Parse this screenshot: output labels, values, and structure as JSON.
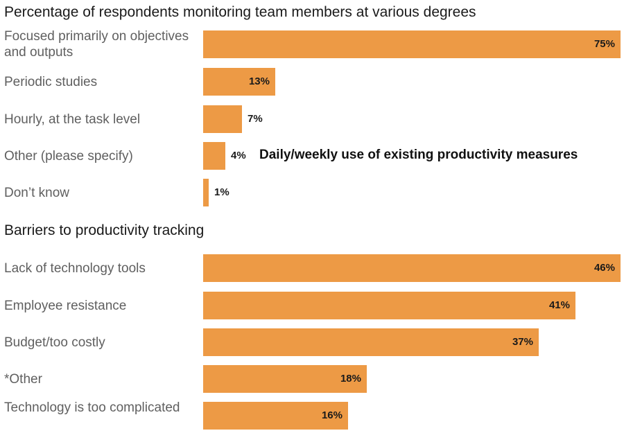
{
  "colors": {
    "bar": "#ED9A45",
    "label": "#5F5F5F",
    "value": "#1A1A1A"
  },
  "chart_data": [
    {
      "type": "bar",
      "orientation": "horizontal",
      "title": "Percentage of respondents monitoring team members at various degrees",
      "categories": [
        "Focused primarily on objectives and outputs",
        "Periodic studies",
        "Hourly, at the task level",
        "Other (please specify)",
        "Don’t know"
      ],
      "values": [
        75,
        13,
        7,
        4,
        1
      ],
      "value_labels": [
        "75%",
        "13%",
        "7%",
        "4%",
        "1%"
      ],
      "annotations": [
        {
          "category": "Other (please specify)",
          "text": "Daily/weekly use of existing productivity measures"
        }
      ],
      "xlim": [
        0,
        75
      ]
    },
    {
      "type": "bar",
      "orientation": "horizontal",
      "title": "Barriers to productivity tracking",
      "categories": [
        "Lack of technology tools",
        "Employee resistance",
        "Budget/too costly",
        "*Other",
        "Technology is too complicated"
      ],
      "values": [
        46,
        41,
        37,
        18,
        16
      ],
      "value_labels": [
        "46%",
        "41%",
        "37%",
        "18%",
        "16%"
      ],
      "xlim": [
        0,
        46
      ]
    }
  ]
}
